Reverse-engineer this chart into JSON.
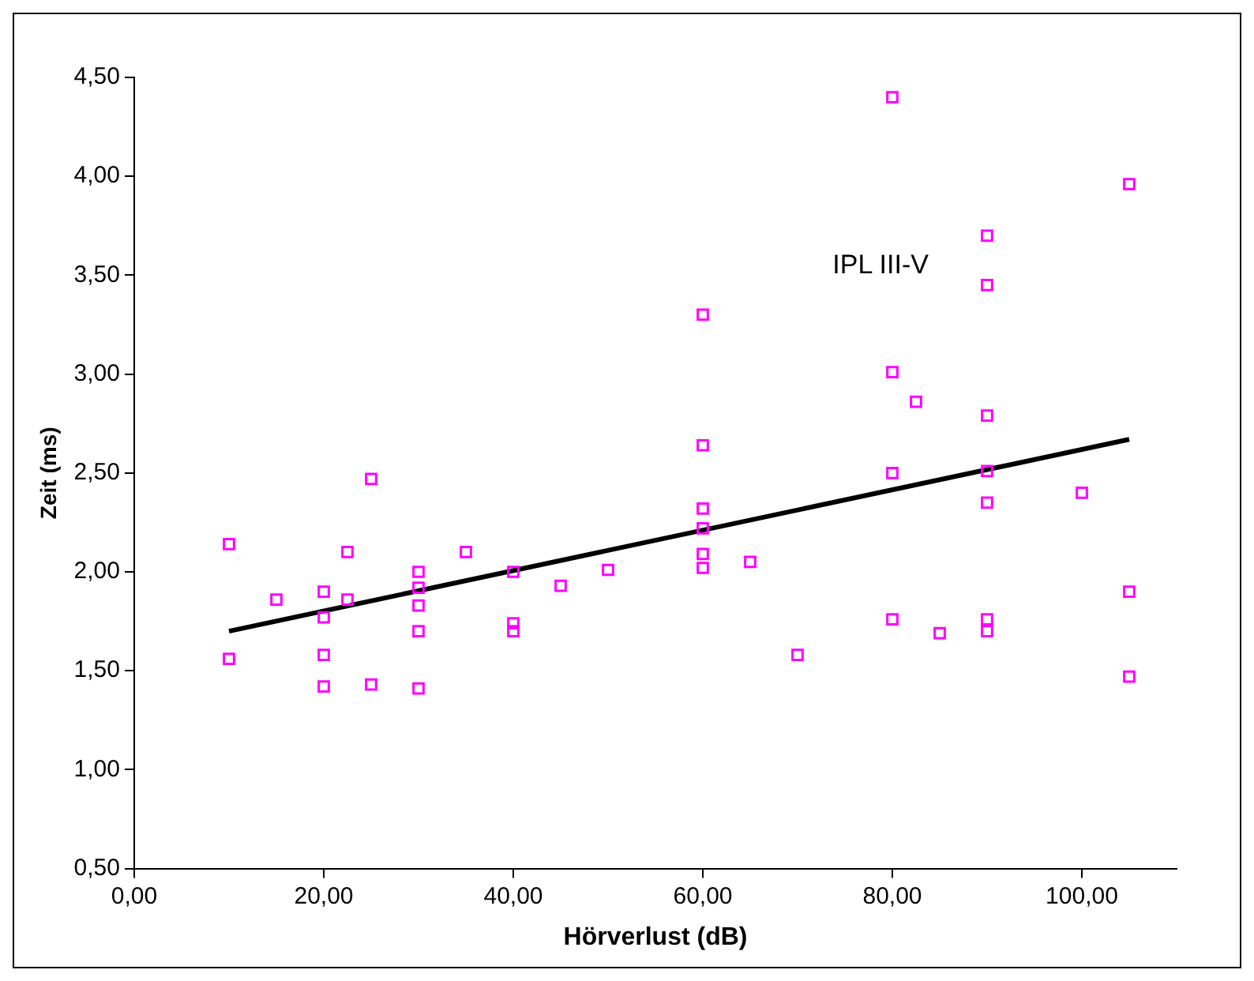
{
  "chart_data": {
    "type": "scatter",
    "xlabel": "Hörverlust (dB)",
    "ylabel": "Zeit (ms)",
    "xlim": [
      0,
      110
    ],
    "ylim": [
      0.5,
      4.5
    ],
    "xticks": [
      {
        "value": 0,
        "label": "0,00"
      },
      {
        "value": 20,
        "label": "20,00"
      },
      {
        "value": 40,
        "label": "40,00"
      },
      {
        "value": 60,
        "label": "60,00"
      },
      {
        "value": 80,
        "label": "80,00"
      },
      {
        "value": 100,
        "label": "100,00"
      }
    ],
    "yticks": [
      {
        "value": 0.5,
        "label": "0,50"
      },
      {
        "value": 1,
        "label": "1,00"
      },
      {
        "value": 1.5,
        "label": "1,50"
      },
      {
        "value": 2,
        "label": "2,00"
      },
      {
        "value": 2.5,
        "label": "2,50"
      },
      {
        "value": 3,
        "label": "3,00"
      },
      {
        "value": 3.5,
        "label": "3,50"
      },
      {
        "value": 4,
        "label": "4,00"
      },
      {
        "value": 4.5,
        "label": "4,50"
      }
    ],
    "grid": false,
    "legend": false,
    "marker": "square",
    "annotations": [
      "IPL III-V"
    ],
    "series": [
      {
        "type": "scatter",
        "color": "#ff00ff",
        "x": [
          10,
          10,
          15,
          20,
          20,
          20,
          20,
          22.5,
          22.5,
          25,
          25,
          30,
          30,
          30,
          30,
          30,
          35,
          40,
          40,
          40,
          45,
          50,
          60,
          60,
          60,
          60,
          60,
          60,
          65,
          70,
          80,
          80,
          80,
          80,
          82.5,
          85,
          90,
          90,
          90,
          90,
          90,
          90,
          90,
          100,
          105,
          105,
          105
        ],
        "values": [
          2.14,
          1.56,
          1.86,
          1.9,
          1.77,
          1.58,
          1.42,
          2.1,
          1.86,
          1.43,
          2.47,
          2.0,
          1.92,
          1.83,
          1.7,
          1.41,
          2.1,
          2.0,
          1.74,
          1.7,
          1.93,
          2.01,
          3.3,
          2.64,
          2.32,
          2.22,
          2.09,
          2.02,
          2.05,
          1.58,
          4.4,
          3.01,
          2.5,
          1.76,
          2.86,
          1.69,
          3.7,
          3.45,
          2.79,
          2.51,
          2.35,
          1.76,
          1.7,
          2.4,
          3.96,
          1.9,
          1.47
        ]
      },
      {
        "type": "line",
        "color": "#000000",
        "marker": "none",
        "x": [
          10,
          105
        ],
        "values": [
          1.7,
          2.67
        ]
      }
    ]
  }
}
